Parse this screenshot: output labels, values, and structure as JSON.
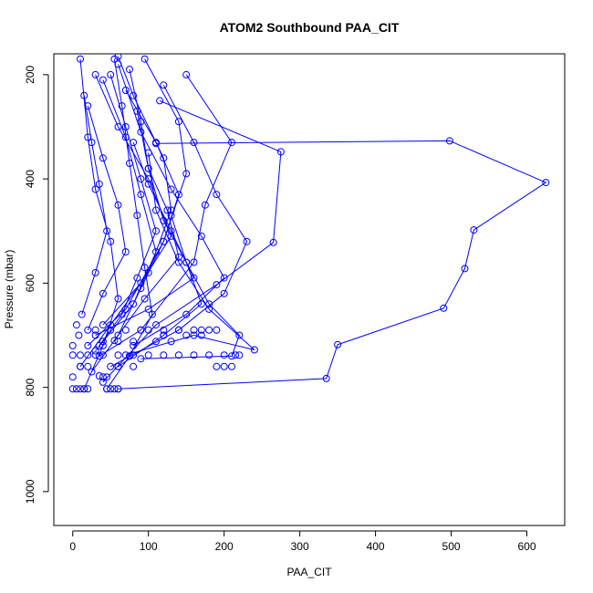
{
  "chart_data": {
    "type": "line",
    "title": "ATOM2 Southbound PAA_CIT",
    "xlabel": "PAA_CIT",
    "ylabel": "Pressure (mbar)",
    "xlim": [
      -25,
      650
    ],
    "ylim": [
      1065,
      160
    ],
    "y_reversed": true,
    "grid": false,
    "legend": "none",
    "x_ticks": [
      0,
      100,
      200,
      300,
      400,
      500,
      600
    ],
    "y_ticks": [
      200,
      400,
      600,
      800,
      1000
    ],
    "marker": "open-circle",
    "color": "#0000ff",
    "series": [
      {
        "points": [
          [
            60,
            803
          ],
          [
            335,
            783
          ],
          [
            350,
            718
          ],
          [
            490,
            648
          ],
          [
            518,
            572
          ],
          [
            530,
            498
          ],
          [
            625,
            407
          ],
          [
            498,
            327
          ],
          [
            110,
            332
          ]
        ]
      },
      {
        "points": [
          [
            40,
            790
          ],
          [
            110,
            680
          ],
          [
            190,
            603
          ],
          [
            265,
            522
          ],
          [
            275,
            348
          ],
          [
            115,
            250
          ]
        ]
      },
      {
        "points": [
          [
            35,
            740
          ],
          [
            90,
            690
          ],
          [
            160,
            560
          ],
          [
            175,
            450
          ],
          [
            210,
            330
          ],
          [
            150,
            200
          ]
        ]
      },
      {
        "points": [
          [
            20,
            720
          ],
          [
            70,
            650
          ],
          [
            120,
            520
          ],
          [
            150,
            390
          ],
          [
            140,
            290
          ],
          [
            95,
            170
          ]
        ]
      },
      {
        "points": [
          [
            10,
            760
          ],
          [
            50,
            680
          ],
          [
            100,
            580
          ],
          [
            130,
            460
          ],
          [
            120,
            360
          ],
          [
            80,
            240
          ],
          [
            60,
            165
          ]
        ]
      },
      {
        "points": [
          [
            30,
            730
          ],
          [
            80,
            640
          ],
          [
            110,
            540
          ],
          [
            90,
            430
          ],
          [
            70,
            320
          ],
          [
            40,
            210
          ]
        ]
      },
      {
        "points": [
          [
            50,
            760
          ],
          [
            140,
            690
          ],
          [
            200,
            620
          ],
          [
            230,
            520
          ],
          [
            190,
            430
          ],
          [
            160,
            330
          ],
          [
            120,
            220
          ]
        ]
      },
      {
        "points": [
          [
            15,
            803
          ],
          [
            40,
            720
          ],
          [
            60,
            630
          ],
          [
            50,
            520
          ],
          [
            30,
            420
          ],
          [
            20,
            320
          ],
          [
            10,
            170
          ]
        ]
      },
      {
        "points": [
          [
            70,
            738
          ],
          [
            160,
            700
          ],
          [
            240,
            728
          ],
          [
            180,
            650
          ],
          [
            140,
            560
          ],
          [
            110,
            460
          ],
          [
            100,
            350
          ]
        ]
      },
      {
        "points": [
          [
            40,
            680
          ],
          [
            90,
            600
          ],
          [
            130,
            510
          ],
          [
            100,
            400
          ],
          [
            60,
            300
          ],
          [
            30,
            200
          ]
        ]
      },
      {
        "points": [
          [
            25,
            770
          ],
          [
            60,
            700
          ],
          [
            90,
            610
          ],
          [
            120,
            520
          ],
          [
            140,
            430
          ],
          [
            110,
            330
          ],
          [
            70,
            230
          ]
        ]
      },
      {
        "points": [
          [
            80,
            720
          ],
          [
            150,
            660
          ],
          [
            200,
            590
          ],
          [
            170,
            510
          ],
          [
            130,
            420
          ],
          [
            90,
            310
          ],
          [
            60,
            180
          ]
        ]
      },
      {
        "points": [
          [
            20,
            690
          ],
          [
            40,
            620
          ],
          [
            70,
            540
          ],
          [
            60,
            450
          ],
          [
            40,
            360
          ],
          [
            20,
            260
          ]
        ]
      },
      {
        "points": [
          [
            60,
            760
          ],
          [
            120,
            700
          ],
          [
            170,
            640
          ],
          [
            150,
            560
          ],
          [
            120,
            480
          ],
          [
            100,
            380
          ],
          [
            85,
            270
          ]
        ]
      },
      {
        "points": [
          [
            45,
            803
          ],
          [
            75,
            740
          ],
          [
            105,
            660
          ],
          [
            95,
            570
          ],
          [
            85,
            470
          ],
          [
            75,
            370
          ],
          [
            65,
            260
          ],
          [
            55,
            170
          ]
        ]
      },
      {
        "points": [
          [
            30,
            700
          ],
          [
            100,
            650
          ],
          [
            160,
            590
          ],
          [
            130,
            500
          ],
          [
            100,
            410
          ],
          [
            80,
            330
          ]
        ]
      },
      {
        "points": [
          [
            90,
            745
          ],
          [
            210,
            740
          ],
          [
            220,
            700
          ],
          [
            180,
            640
          ],
          [
            150,
            560
          ],
          [
            130,
            470
          ]
        ]
      },
      {
        "points": [
          [
            35,
            720
          ],
          [
            65,
            660
          ],
          [
            85,
            590
          ],
          [
            110,
            500
          ],
          [
            90,
            400
          ],
          [
            70,
            300
          ],
          [
            50,
            200
          ]
        ]
      },
      {
        "points": [
          [
            55,
            710
          ],
          [
            95,
            630
          ],
          [
            140,
            550
          ],
          [
            125,
            460
          ],
          [
            100,
            380
          ],
          [
            90,
            290
          ],
          [
            75,
            190
          ]
        ]
      },
      {
        "points": [
          [
            12,
            660
          ],
          [
            30,
            580
          ],
          [
            45,
            500
          ],
          [
            35,
            410
          ],
          [
            25,
            330
          ],
          [
            15,
            240
          ]
        ]
      }
    ],
    "points": [
      [
        0,
        803
      ],
      [
        5,
        803
      ],
      [
        10,
        803
      ],
      [
        15,
        803
      ],
      [
        20,
        803
      ],
      [
        45,
        803
      ],
      [
        50,
        803
      ],
      [
        55,
        803
      ],
      [
        60,
        803
      ],
      [
        0,
        780
      ],
      [
        10,
        760
      ],
      [
        20,
        760
      ],
      [
        0,
        738
      ],
      [
        10,
        738
      ],
      [
        20,
        738
      ],
      [
        0,
        720
      ],
      [
        8,
        700
      ],
      [
        5,
        680
      ],
      [
        40,
        780
      ],
      [
        45,
        780
      ],
      [
        35,
        778
      ],
      [
        30,
        738
      ],
      [
        40,
        738
      ],
      [
        60,
        738
      ],
      [
        80,
        738
      ],
      [
        100,
        738
      ],
      [
        120,
        738
      ],
      [
        140,
        738
      ],
      [
        160,
        738
      ],
      [
        180,
        738
      ],
      [
        200,
        738
      ],
      [
        215,
        738
      ],
      [
        220,
        738
      ],
      [
        100,
        690
      ],
      [
        120,
        690
      ],
      [
        140,
        690
      ],
      [
        160,
        690
      ],
      [
        170,
        690
      ],
      [
        180,
        690
      ],
      [
        190,
        690
      ],
      [
        30,
        690
      ],
      [
        50,
        690
      ],
      [
        70,
        690
      ],
      [
        90,
        690
      ],
      [
        60,
        760
      ],
      [
        80,
        760
      ],
      [
        190,
        760
      ],
      [
        200,
        760
      ],
      [
        210,
        760
      ],
      [
        40,
        712
      ],
      [
        60,
        712
      ],
      [
        80,
        712
      ],
      [
        110,
        712
      ],
      [
        130,
        712
      ],
      [
        150,
        700
      ],
      [
        170,
        700
      ],
      [
        120,
        700
      ]
    ]
  }
}
